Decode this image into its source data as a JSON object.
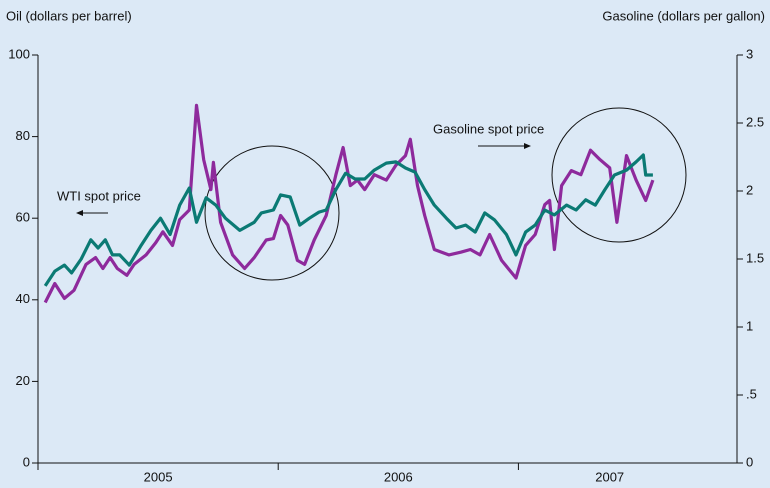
{
  "chart_data": {
    "type": "line",
    "y_label": "Oil (dollars per barrel)",
    "y2_label": "Gasoline (dollars per gallon)",
    "xlim": [
      2005,
      2007.91
    ],
    "xticks": [
      2005,
      2006,
      2007
    ],
    "ylim": [
      0,
      100
    ],
    "yticks": [
      0,
      20,
      40,
      60,
      80,
      100
    ],
    "y2lim": [
      0,
      3
    ],
    "y2ticks": [
      0,
      {
        "value": 0.5,
        "label": ".5"
      },
      1,
      1.5,
      2,
      2.5,
      3
    ],
    "series": [
      {
        "name": "WTI spot price",
        "color": "#0b7a74",
        "x": [
          2005.03,
          2005.07,
          2005.11,
          2005.14,
          2005.18,
          2005.22,
          2005.25,
          2005.28,
          2005.31,
          2005.34,
          2005.38,
          2005.43,
          2005.47,
          2005.51,
          2005.55,
          2005.59,
          2005.63,
          2005.66,
          2005.7,
          2005.74,
          2005.78,
          2005.84,
          2005.9,
          2005.93,
          2005.98,
          2006.01,
          2006.05,
          2006.09,
          2006.13,
          2006.17,
          2006.2,
          2006.24,
          2006.28,
          2006.32,
          2006.36,
          2006.4,
          2006.45,
          2006.49,
          2006.53,
          2006.57,
          2006.61,
          2006.65,
          2006.7,
          2006.74,
          2006.78,
          2006.82,
          2006.86,
          2006.9,
          2006.95,
          2006.99,
          2007.03,
          2007.07,
          2007.11,
          2007.15,
          2007.2,
          2007.24,
          2007.28,
          2007.32,
          2007.36,
          2007.4,
          2007.45,
          2007.49,
          2007.52,
          2007.53,
          2007.56
        ],
        "values": [
          43.4,
          47,
          48.5,
          46.6,
          50,
          54.7,
          52.7,
          54.7,
          51,
          51,
          48.5,
          53.4,
          57,
          60,
          56,
          63.2,
          67.4,
          59,
          65,
          63.2,
          60,
          57,
          59,
          61.3,
          62,
          65.7,
          65.2,
          58.3,
          60,
          61.5,
          62,
          67,
          71,
          69.6,
          69.6,
          71.8,
          73.5,
          73.8,
          72.3,
          71.3,
          67,
          63.2,
          60,
          57.6,
          58.3,
          56.6,
          61.3,
          59.6,
          56,
          51,
          56.6,
          58.3,
          62,
          60.8,
          63.2,
          62,
          64.5,
          63.2,
          67,
          70.6,
          71.8,
          73.8,
          75.5,
          70.6,
          70.6
        ]
      },
      {
        "name": "Gasoline spot price",
        "color": "#8e2a9c",
        "axis": "y2",
        "x": [
          2005.03,
          2005.07,
          2005.11,
          2005.15,
          2005.2,
          2005.24,
          2005.27,
          2005.3,
          2005.33,
          2005.37,
          2005.4,
          2005.45,
          2005.49,
          2005.52,
          2005.56,
          2005.59,
          2005.63,
          2005.66,
          2005.69,
          2005.72,
          2005.73,
          2005.76,
          2005.81,
          2005.86,
          2005.9,
          2005.95,
          2005.98,
          2006.01,
          2006.04,
          2006.08,
          2006.11,
          2006.15,
          2006.2,
          2006.24,
          2006.27,
          2006.3,
          2006.33,
          2006.36,
          2006.4,
          2006.45,
          2006.49,
          2006.53,
          2006.55,
          2006.58,
          2006.61,
          2006.65,
          2006.71,
          2006.76,
          2006.8,
          2006.84,
          2006.88,
          2006.93,
          2006.99,
          2007.03,
          2007.07,
          2007.11,
          2007.13,
          2007.15,
          2007.18,
          2007.22,
          2007.26,
          2007.3,
          2007.34,
          2007.38,
          2007.41,
          2007.45,
          2007.49,
          2007.53,
          2007.56
        ],
        "values": [
          1.18,
          1.32,
          1.21,
          1.27,
          1.46,
          1.51,
          1.43,
          1.51,
          1.43,
          1.38,
          1.46,
          1.53,
          1.62,
          1.7,
          1.6,
          1.79,
          1.86,
          2.63,
          2.23,
          2.01,
          2.21,
          1.77,
          1.53,
          1.43,
          1.51,
          1.64,
          1.65,
          1.82,
          1.75,
          1.49,
          1.46,
          1.64,
          1.82,
          2.12,
          2.32,
          2.04,
          2.08,
          2.01,
          2.12,
          2.08,
          2.19,
          2.26,
          2.38,
          2.04,
          1.82,
          1.57,
          1.53,
          1.55,
          1.57,
          1.53,
          1.68,
          1.49,
          1.36,
          1.6,
          1.68,
          1.9,
          1.93,
          1.57,
          2.04,
          2.15,
          2.12,
          2.3,
          2.23,
          2.17,
          1.77,
          2.26,
          2.08,
          1.93,
          2.08
        ]
      }
    ]
  }
}
